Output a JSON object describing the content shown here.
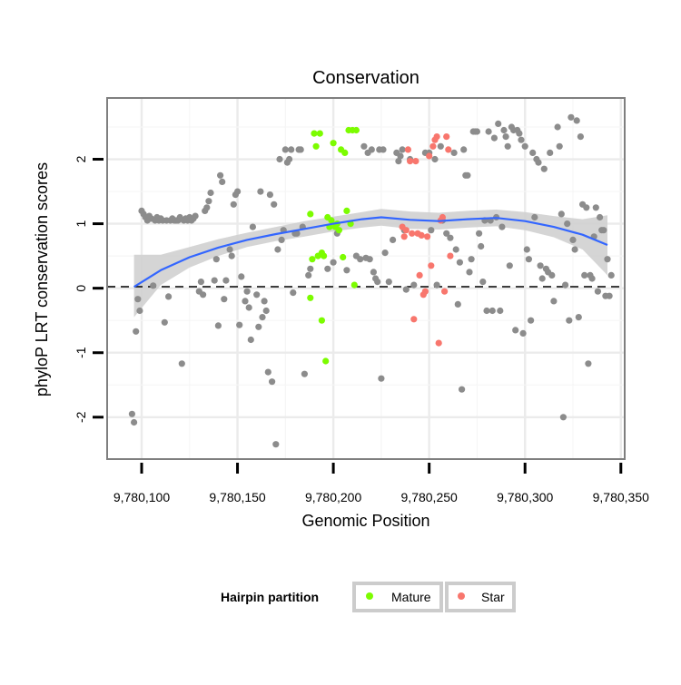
{
  "chart_data": {
    "type": "scatter",
    "title": "Conservation",
    "xlabel": "Genomic Position",
    "ylabel": "phyloP LRT conservation scores",
    "xlim": [
      9780082,
      9780352
    ],
    "ylim": [
      -2.65,
      2.95
    ],
    "x_ticks": [
      9780100,
      9780150,
      9780200,
      9780250,
      9780300,
      9780350
    ],
    "x_tick_labels": [
      "9,780,100",
      "9,780,150",
      "9,780,200",
      "9,780,250",
      "9,780,300",
      "9,780,350"
    ],
    "y_ticks": [
      -2,
      -1,
      0,
      1,
      2
    ],
    "y_tick_labels": [
      "-2",
      "-1",
      "0",
      "1",
      "2"
    ],
    "reference_line": {
      "y": 0,
      "style": "dashed"
    },
    "grid": true,
    "legend": {
      "title": "Hairpin partition",
      "position": "bottom",
      "entries": [
        {
          "label": "Mature",
          "color": "#7CFC00"
        },
        {
          "label": "Star",
          "color": "#F8766D"
        }
      ]
    },
    "colors": {
      "other": "#8c8c8c",
      "Mature": "#7CFC00",
      "Star": "#F8766D",
      "smooth": "#3366FF",
      "band": "#d0d0d0"
    },
    "smooth": {
      "x": [
        9780096,
        9780110,
        9780125,
        9780140,
        9780155,
        9780170,
        9780185,
        9780200,
        9780215,
        9780225,
        9780240,
        9780255,
        9780270,
        9780285,
        9780300,
        9780315,
        9780330,
        9780343
      ],
      "y": [
        0.02,
        0.28,
        0.48,
        0.63,
        0.75,
        0.84,
        0.92,
        1.0,
        1.07,
        1.1,
        1.06,
        1.04,
        1.07,
        1.09,
        1.04,
        0.95,
        0.83,
        0.67
      ],
      "lower": [
        -0.45,
        0.05,
        0.32,
        0.5,
        0.64,
        0.73,
        0.8,
        0.88,
        0.94,
        0.97,
        0.92,
        0.91,
        0.94,
        0.96,
        0.9,
        0.79,
        0.6,
        0.2
      ],
      "upper": [
        0.52,
        0.52,
        0.64,
        0.76,
        0.86,
        0.95,
        1.04,
        1.11,
        1.18,
        1.23,
        1.19,
        1.17,
        1.2,
        1.22,
        1.18,
        1.12,
        1.07,
        1.13
      ]
    },
    "series": [
      {
        "name": "Other",
        "points": [
          [
            9780095,
            -1.95
          ],
          [
            9780096,
            -2.08
          ],
          [
            9780097,
            -0.67
          ],
          [
            9780098,
            -0.17
          ],
          [
            9780099,
            -0.35
          ],
          [
            9780100,
            1.2
          ],
          [
            9780101,
            1.15
          ],
          [
            9780102,
            1.1
          ],
          [
            9780103,
            1.05
          ],
          [
            9780104,
            1.12
          ],
          [
            9780105,
            1.08
          ],
          [
            9780106,
            0.04
          ],
          [
            9780107,
            1.05
          ],
          [
            9780108,
            1.1
          ],
          [
            9780109,
            1.05
          ],
          [
            9780110,
            1.08
          ],
          [
            9780111,
            1.05
          ],
          [
            9780112,
            -0.53
          ],
          [
            9780113,
            1.05
          ],
          [
            9780114,
            -0.13
          ],
          [
            9780115,
            1.05
          ],
          [
            9780116,
            1.08
          ],
          [
            9780117,
            1.05
          ],
          [
            9780118,
            1.05
          ],
          [
            9780119,
            1.05
          ],
          [
            9780120,
            1.1
          ],
          [
            9780121,
            -1.17
          ],
          [
            9780122,
            1.05
          ],
          [
            9780123,
            1.08
          ],
          [
            9780124,
            1.05
          ],
          [
            9780125,
            1.1
          ],
          [
            9780126,
            1.05
          ],
          [
            9780127,
            1.08
          ],
          [
            9780128,
            1.12
          ],
          [
            9780130,
            -0.05
          ],
          [
            9780131,
            0.1
          ],
          [
            9780132,
            -0.1
          ],
          [
            9780133,
            1.2
          ],
          [
            9780134,
            1.25
          ],
          [
            9780135,
            1.35
          ],
          [
            9780136,
            1.48
          ],
          [
            9780138,
            0.12
          ],
          [
            9780139,
            0.45
          ],
          [
            9780140,
            -0.58
          ],
          [
            9780141,
            1.75
          ],
          [
            9780142,
            1.65
          ],
          [
            9780143,
            -0.17
          ],
          [
            9780144,
            0.12
          ],
          [
            9780146,
            0.6
          ],
          [
            9780147,
            0.5
          ],
          [
            9780148,
            1.3
          ],
          [
            9780149,
            1.45
          ],
          [
            9780150,
            1.5
          ],
          [
            9780151,
            -0.57
          ],
          [
            9780152,
            0.18
          ],
          [
            9780154,
            -0.2
          ],
          [
            9780155,
            -0.05
          ],
          [
            9780156,
            -0.3
          ],
          [
            9780157,
            -0.8
          ],
          [
            9780158,
            0.95
          ],
          [
            9780160,
            -0.1
          ],
          [
            9780161,
            -0.6
          ],
          [
            9780162,
            1.5
          ],
          [
            9780163,
            -0.45
          ],
          [
            9780164,
            -0.2
          ],
          [
            9780165,
            -0.35
          ],
          [
            9780166,
            -1.3
          ],
          [
            9780167,
            1.45
          ],
          [
            9780168,
            -1.45
          ],
          [
            9780169,
            1.3
          ],
          [
            9780170,
            -2.42
          ],
          [
            9780171,
            0.6
          ],
          [
            9780172,
            2.0
          ],
          [
            9780173,
            0.75
          ],
          [
            9780174,
            0.9
          ],
          [
            9780175,
            2.15
          ],
          [
            9780176,
            1.95
          ],
          [
            9780177,
            2.0
          ],
          [
            9780178,
            2.15
          ],
          [
            9780179,
            -0.07
          ],
          [
            9780180,
            0.85
          ],
          [
            9780181,
            0.85
          ],
          [
            9780182,
            2.15
          ],
          [
            9780183,
            2.15
          ],
          [
            9780184,
            0.95
          ],
          [
            9780185,
            -1.33
          ],
          [
            9780187,
            0.2
          ],
          [
            9780188,
            0.3
          ],
          [
            9780197,
            0.3
          ],
          [
            9780200,
            0.4
          ],
          [
            9780202,
            0.85
          ],
          [
            9780207,
            0.28
          ],
          [
            9780212,
            0.5
          ],
          [
            9780214,
            0.45
          ],
          [
            9780216,
            2.2
          ],
          [
            9780217,
            0.47
          ],
          [
            9780218,
            2.1
          ],
          [
            9780219,
            0.45
          ],
          [
            9780220,
            2.15
          ],
          [
            9780221,
            0.25
          ],
          [
            9780222,
            0.15
          ],
          [
            9780223,
            0.1
          ],
          [
            9780224,
            2.15
          ],
          [
            9780225,
            -1.4
          ],
          [
            9780226,
            2.15
          ],
          [
            9780227,
            0.55
          ],
          [
            9780229,
            0.1
          ],
          [
            9780231,
            0.75
          ],
          [
            9780233,
            2.1
          ],
          [
            9780234,
            1.97
          ],
          [
            9780235,
            2.05
          ],
          [
            9780236,
            2.15
          ],
          [
            9780237,
            0.9
          ],
          [
            9780238,
            -0.02
          ],
          [
            9780240,
            2.0
          ],
          [
            9780242,
            0.05
          ],
          [
            9780248,
            2.1
          ],
          [
            9780250,
            2.1
          ],
          [
            9780251,
            0.9
          ],
          [
            9780253,
            2.0
          ],
          [
            9780254,
            0.05
          ],
          [
            9780256,
            2.2
          ],
          [
            9780257,
            1.05
          ],
          [
            9780259,
            0.85
          ],
          [
            9780261,
            0.78
          ],
          [
            9780263,
            2.1
          ],
          [
            9780264,
            0.6
          ],
          [
            9780265,
            -0.25
          ],
          [
            9780266,
            0.4
          ],
          [
            9780267,
            -1.57
          ],
          [
            9780268,
            2.15
          ],
          [
            9780269,
            1.75
          ],
          [
            9780270,
            1.75
          ],
          [
            9780271,
            0.25
          ],
          [
            9780272,
            0.45
          ],
          [
            9780273,
            2.43
          ],
          [
            9780274,
            2.43
          ],
          [
            9780275,
            2.43
          ],
          [
            9780276,
            0.85
          ],
          [
            9780277,
            0.65
          ],
          [
            9780278,
            0.1
          ],
          [
            9780279,
            1.05
          ],
          [
            9780280,
            -0.35
          ],
          [
            9780281,
            2.43
          ],
          [
            9780282,
            1.05
          ],
          [
            9780283,
            -0.35
          ],
          [
            9780284,
            2.33
          ],
          [
            9780285,
            1.1
          ],
          [
            9780286,
            2.55
          ],
          [
            9780287,
            -0.35
          ],
          [
            9780288,
            0.95
          ],
          [
            9780289,
            2.45
          ],
          [
            9780290,
            2.35
          ],
          [
            9780291,
            2.2
          ],
          [
            9780292,
            0.35
          ],
          [
            9780293,
            2.5
          ],
          [
            9780294,
            2.45
          ],
          [
            9780295,
            -0.65
          ],
          [
            9780296,
            2.45
          ],
          [
            9780297,
            2.4
          ],
          [
            9780298,
            2.3
          ],
          [
            9780299,
            -0.7
          ],
          [
            9780300,
            2.2
          ],
          [
            9780301,
            0.6
          ],
          [
            9780302,
            0.45
          ],
          [
            9780303,
            -0.5
          ],
          [
            9780304,
            2.1
          ],
          [
            9780305,
            1.1
          ],
          [
            9780306,
            2.0
          ],
          [
            9780307,
            1.95
          ],
          [
            9780308,
            0.35
          ],
          [
            9780309,
            0.15
          ],
          [
            9780310,
            1.85
          ],
          [
            9780311,
            0.3
          ],
          [
            9780312,
            0.25
          ],
          [
            9780313,
            2.1
          ],
          [
            9780314,
            0.2
          ],
          [
            9780315,
            -0.2
          ],
          [
            9780317,
            2.5
          ],
          [
            9780318,
            2.2
          ],
          [
            9780319,
            1.15
          ],
          [
            9780320,
            -2.0
          ],
          [
            9780321,
            0.05
          ],
          [
            9780322,
            1.0
          ],
          [
            9780323,
            -0.5
          ],
          [
            9780324,
            2.65
          ],
          [
            9780325,
            0.75
          ],
          [
            9780326,
            0.6
          ],
          [
            9780327,
            2.6
          ],
          [
            9780328,
            -0.45
          ],
          [
            9780329,
            2.35
          ],
          [
            9780330,
            1.3
          ],
          [
            9780331,
            0.2
          ],
          [
            9780332,
            1.25
          ],
          [
            9780333,
            -1.17
          ],
          [
            9780334,
            0.2
          ],
          [
            9780335,
            0.15
          ],
          [
            9780336,
            0.8
          ],
          [
            9780337,
            1.25
          ],
          [
            9780338,
            -0.05
          ],
          [
            9780339,
            1.1
          ],
          [
            9780340,
            0.9
          ],
          [
            9780341,
            0.9
          ],
          [
            9780342,
            -0.12
          ],
          [
            9780343,
            0.45
          ],
          [
            9780344,
            -0.12
          ],
          [
            9780345,
            0.2
          ]
        ]
      },
      {
        "name": "Mature",
        "points": [
          [
            9780188,
            1.15
          ],
          [
            9780188,
            -0.15
          ],
          [
            9780189,
            0.45
          ],
          [
            9780190,
            2.4
          ],
          [
            9780191,
            2.2
          ],
          [
            9780192,
            0.5
          ],
          [
            9780193,
            2.4
          ],
          [
            9780194,
            -0.5
          ],
          [
            9780194,
            0.55
          ],
          [
            9780195,
            0.5
          ],
          [
            9780196,
            -1.13
          ],
          [
            9780197,
            1.1
          ],
          [
            9780198,
            0.95
          ],
          [
            9780199,
            1.05
          ],
          [
            9780200,
            2.25
          ],
          [
            9780201,
            0.95
          ],
          [
            9780202,
            1.0
          ],
          [
            9780203,
            0.9
          ],
          [
            9780204,
            2.15
          ],
          [
            9780205,
            0.48
          ],
          [
            9780206,
            2.1
          ],
          [
            9780207,
            1.2
          ],
          [
            9780208,
            2.45
          ],
          [
            9780209,
            1.0
          ],
          [
            9780210,
            2.45
          ],
          [
            9780211,
            0.05
          ],
          [
            9780212,
            2.45
          ]
        ]
      },
      {
        "name": "Star",
        "points": [
          [
            9780236,
            0.95
          ],
          [
            9780237,
            0.8
          ],
          [
            9780238,
            0.9
          ],
          [
            9780239,
            2.15
          ],
          [
            9780240,
            1.97
          ],
          [
            9780241,
            0.85
          ],
          [
            9780242,
            -0.48
          ],
          [
            9780243,
            1.97
          ],
          [
            9780244,
            0.85
          ],
          [
            9780245,
            0.2
          ],
          [
            9780246,
            0.82
          ],
          [
            9780247,
            -0.1
          ],
          [
            9780248,
            -0.05
          ],
          [
            9780249,
            0.8
          ],
          [
            9780250,
            2.05
          ],
          [
            9780251,
            0.35
          ],
          [
            9780252,
            2.2
          ],
          [
            9780253,
            2.3
          ],
          [
            9780254,
            2.35
          ],
          [
            9780255,
            -0.85
          ],
          [
            9780256,
            1.05
          ],
          [
            9780257,
            1.1
          ],
          [
            9780258,
            -0.05
          ],
          [
            9780259,
            2.35
          ],
          [
            9780260,
            2.15
          ],
          [
            9780261,
            0.5
          ]
        ]
      }
    ]
  }
}
